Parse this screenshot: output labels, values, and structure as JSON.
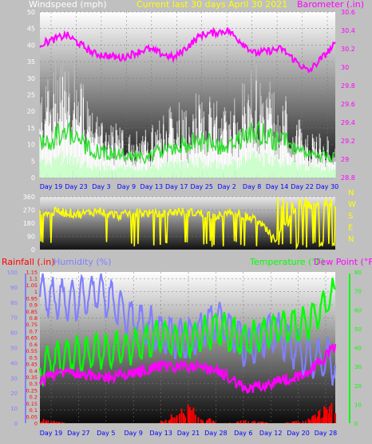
{
  "title": "Current last 30 days April 30 2021",
  "colors": {
    "background": "#c0c0c0",
    "windspeed": "#ffffff",
    "windspeed_label": "#ffffff",
    "gust": "#b8b8b8",
    "avg_wind": "#33dd33",
    "low_wind": "#ccffcc",
    "barometer": "#ff00ff",
    "wind_dir": "#ffff00",
    "rainfall": "#ff0000",
    "humidity": "#8080ff",
    "temperature": "#00ff00",
    "dew_point": "#ff00ff",
    "date_labels": "#0000ff"
  },
  "panels": {
    "wind": {
      "left_label": "Windspeed (mph)",
      "right_label": "Barometer (.in)",
      "left_ticks": [
        "0",
        "5",
        "10",
        "15",
        "20",
        "25",
        "30",
        "35",
        "40",
        "45",
        "50"
      ],
      "right_ticks": [
        "28.8",
        "29",
        "29.2",
        "29.4",
        "29.6",
        "29.8",
        "30",
        "30.2",
        "30.4",
        "30.6"
      ],
      "x_labels": [
        "Day 19",
        "Day 23",
        "Day 3",
        "Day 9",
        "Day 13",
        "Day 17",
        "Day 25",
        "Day 2",
        "Day 8",
        "Day 14",
        "Day 22",
        "Day 30"
      ]
    },
    "direction": {
      "left_ticks": [
        "0",
        "90",
        "180",
        "270",
        "360"
      ],
      "right_letters": [
        "N",
        "W",
        "S",
        "E",
        "N"
      ]
    },
    "weather": {
      "label_rainfall": "Rainfall (.in)",
      "label_humidity": "Humidity (%)",
      "label_temperature": "Temperature (°F)",
      "label_dewpoint": "Dew Point (°F)",
      "rain_ticks": [
        "0",
        "0.05",
        "0.1",
        "0.15",
        "0.2",
        "0.25",
        "0.3",
        "0.35",
        "0.4",
        "0.45",
        "0.5",
        "0.55",
        "0.6",
        "0.65",
        "0.7",
        "0.75",
        "0.8",
        "0.85",
        "0.9",
        "0.95",
        "1",
        "1.05",
        "1.1",
        "1.15"
      ],
      "humidity_ticks": [
        "0",
        "10",
        "20",
        "30",
        "40",
        "50",
        "60",
        "70",
        "80",
        "90",
        "100"
      ],
      "temp_ticks": [
        "0",
        "10",
        "20",
        "30",
        "40",
        "50",
        "60",
        "70",
        "80"
      ],
      "x_labels": [
        "Day 19",
        "Day 27",
        "Day 5",
        "Day 9",
        "Day 13",
        "Day 21",
        "Day 28",
        "Day 6",
        "Day 12",
        "Day 20",
        "Day 28"
      ]
    }
  },
  "chart_data": [
    {
      "type": "line",
      "xlabel": "",
      "categories": [
        "Day 19",
        "Day 23",
        "Day 3",
        "Day 9",
        "Day 13",
        "Day 17",
        "Day 25",
        "Day 2",
        "Day 8",
        "Day 14",
        "Day 22",
        "Day 30"
      ],
      "ylabel_left": "Windspeed (mph)",
      "ylim_left": [
        0,
        50
      ],
      "ylabel_right": "Barometer (.in)",
      "ylim_right": [
        28.8,
        30.6
      ],
      "series": [
        {
          "axis": "left",
          "values": [
            26,
            38,
            18,
            15,
            13,
            21,
            24,
            20,
            33,
            24,
            14,
            11
          ]
        },
        {
          "axis": "left",
          "values": [
            10,
            14,
            8,
            7,
            6,
            10,
            11,
            9,
            14,
            11,
            7,
            6
          ]
        },
        {
          "axis": "right",
          "values": [
            30.25,
            30.35,
            30.15,
            30.1,
            30.2,
            30.1,
            30.35,
            30.4,
            30.15,
            30.2,
            29.95,
            30.25
          ]
        }
      ]
    },
    {
      "type": "line",
      "xlabel": "",
      "ylabel": "",
      "ylim": [
        0,
        360
      ],
      "values": [
        250,
        260,
        240,
        265,
        230,
        255,
        240,
        260,
        250,
        230,
        250,
        200,
        60,
        270,
        300,
        290
      ]
    },
    {
      "type": "line",
      "xlabel": "",
      "categories": [
        "Day 19",
        "Day 27",
        "Day 5",
        "Day 9",
        "Day 13",
        "Day 21",
        "Day 28",
        "Day 6",
        "Day 12",
        "Day 20",
        "Day 28"
      ],
      "ylim_rain": [
        0,
        1.15
      ],
      "ylim_humidity": [
        0,
        100
      ],
      "ylim_temp": [
        0,
        80
      ],
      "series": [
        {
          "name": "Rainfall (.in)",
          "axis": "rain",
          "values": [
            0.03,
            0.0,
            0.0,
            0.0,
            0.0,
            0.12,
            0.0,
            0.02,
            0.0,
            0.02,
            0.15
          ]
        },
        {
          "name": "Humidity (%)",
          "axis": "humidity",
          "values": [
            85,
            80,
            88,
            70,
            60,
            55,
            70,
            50,
            60,
            45,
            40
          ]
        },
        {
          "name": "Temperature (°F)",
          "axis": "temp",
          "values": [
            30,
            36,
            38,
            40,
            46,
            44,
            50,
            44,
            50,
            52,
            70
          ]
        },
        {
          "name": "Dew Point (°F)",
          "axis": "temp",
          "values": [
            22,
            28,
            24,
            26,
            30,
            30,
            28,
            18,
            22,
            26,
            40
          ]
        }
      ]
    }
  ]
}
